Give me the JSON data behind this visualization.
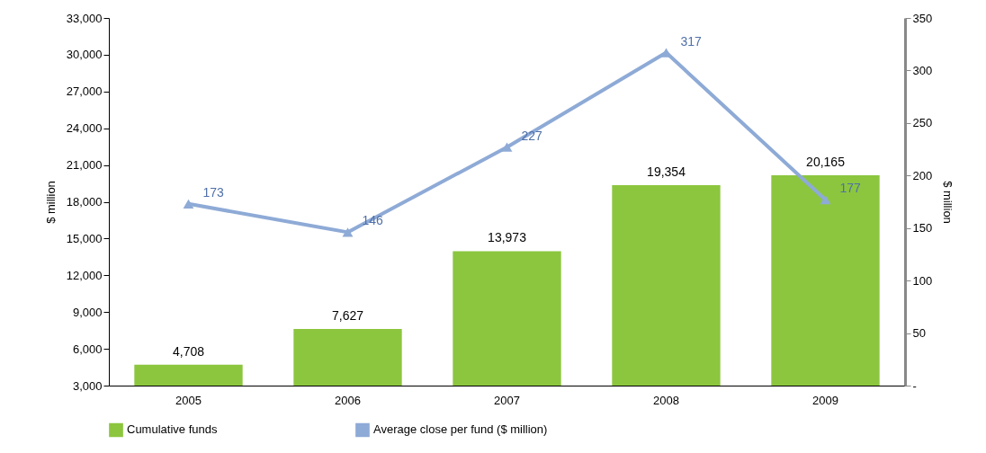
{
  "chart_data": {
    "type": "bar",
    "categories": [
      "2005",
      "2006",
      "2007",
      "2008",
      "2009"
    ],
    "series": [
      {
        "name": "Cumulative funds",
        "type": "bar",
        "color": "#8cc63f",
        "values": [
          4708,
          7627,
          13973,
          19354,
          20165
        ],
        "value_labels": [
          "4,708",
          "7,627",
          "13,973",
          "19,354",
          "20,165"
        ]
      },
      {
        "name": "Average close per fund ($ million)",
        "type": "line",
        "axis": "y2",
        "color": "#8eaad6",
        "values": [
          173,
          146,
          227,
          317,
          177
        ],
        "value_labels": [
          "173",
          "146",
          "227",
          "317",
          "177"
        ]
      }
    ],
    "ylabel": "$ million",
    "y2label": "$ million",
    "ylim": [
      3000,
      33000
    ],
    "yticks": [
      {
        "value": 3000,
        "label": "3,000"
      },
      {
        "value": 6000,
        "label": "6,000"
      },
      {
        "value": 9000,
        "label": "9,000"
      },
      {
        "value": 12000,
        "label": "12,000"
      },
      {
        "value": 15000,
        "label": "15,000"
      },
      {
        "value": 18000,
        "label": "18,000"
      },
      {
        "value": 21000,
        "label": "21,000"
      },
      {
        "value": 24000,
        "label": "24,000"
      },
      {
        "value": 27000,
        "label": "27,000"
      },
      {
        "value": 30000,
        "label": "30,000"
      },
      {
        "value": 33000,
        "label": "33,000"
      }
    ],
    "y2lim": [
      0,
      350
    ],
    "y2ticks": [
      {
        "value": 0,
        "label": "-"
      },
      50,
      100,
      150,
      200,
      250,
      300,
      350
    ],
    "legend": "bottom",
    "marker": "triangle",
    "grid": false
  }
}
